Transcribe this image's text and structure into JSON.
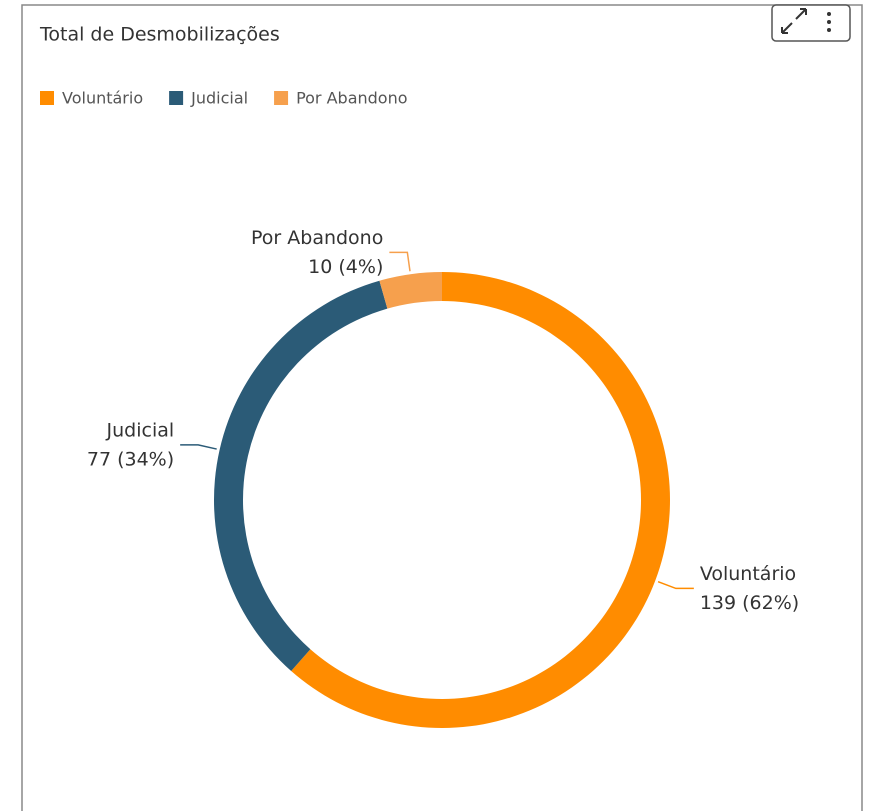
{
  "chart_data": {
    "type": "donut",
    "title": "Total de Desmobilizações",
    "categories": [
      "Voluntário",
      "Judicial",
      "Por Abandono"
    ],
    "values": [
      139,
      77,
      10
    ],
    "value_labels": [
      "139 (62%)",
      "77 (34%)",
      "10 (4%)"
    ],
    "colors": [
      "#ff8c00",
      "#2b5b77",
      "#f6a04d"
    ],
    "legend": "top-left"
  }
}
